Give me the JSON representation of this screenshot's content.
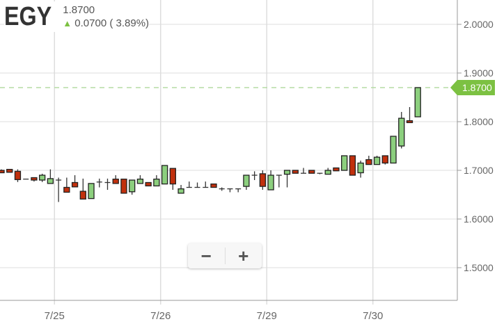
{
  "header": {
    "symbol": "EGY",
    "last": "1.8700",
    "change": "0.0700 ( 3.89%)",
    "direction_icon": "arrow-up-icon"
  },
  "zoom": {
    "minus": "−",
    "plus": "+"
  },
  "colors": {
    "up": "#8ccf7e",
    "down": "#c1300d",
    "last_price": "#7cc142",
    "grid": "#e8e8e8"
  },
  "chart_data": {
    "type": "candlestick",
    "ylim": [
      1.43,
      2.05
    ],
    "y_ticks": [
      "2.0000",
      "1.9000",
      "1.8000",
      "1.7000",
      "1.6000",
      "1.5000"
    ],
    "x_ticks": [
      {
        "label": "7/25",
        "at": 6.5
      },
      {
        "label": "7/26",
        "at": 19.5
      },
      {
        "label": "7/29",
        "at": 32.5
      },
      {
        "label": "7/30",
        "at": 45.5
      }
    ],
    "last_price": 1.87,
    "last_price_label": "1.8700",
    "candles": [
      [
        1.7,
        1.702,
        1.695,
        1.695
      ],
      [
        1.702,
        1.702,
        1.696,
        1.696
      ],
      [
        1.698,
        1.702,
        1.676,
        1.681
      ],
      [
        1.682,
        1.682,
        1.682,
        1.682
      ],
      [
        1.685,
        1.685,
        1.677,
        1.68
      ],
      [
        1.68,
        1.693,
        1.676,
        1.69
      ],
      [
        1.673,
        1.702,
        1.673,
        1.683
      ],
      [
        1.68,
        1.685,
        1.635,
        1.68
      ],
      [
        1.665,
        1.685,
        1.655,
        1.655
      ],
      [
        1.675,
        1.69,
        1.666,
        1.666
      ],
      [
        1.657,
        1.683,
        1.641,
        1.641
      ],
      [
        1.642,
        1.673,
        1.642,
        1.673
      ],
      [
        1.676,
        1.683,
        1.665,
        1.676
      ],
      [
        1.675,
        1.683,
        1.66,
        1.675
      ],
      [
        1.682,
        1.69,
        1.673,
        1.673
      ],
      [
        1.682,
        1.682,
        1.653,
        1.653
      ],
      [
        1.656,
        1.68,
        1.65,
        1.68
      ],
      [
        1.673,
        1.69,
        1.673,
        1.682
      ],
      [
        1.675,
        1.675,
        1.668,
        1.668
      ],
      [
        1.668,
        1.69,
        1.668,
        1.682
      ],
      [
        1.672,
        1.71,
        1.672,
        1.71
      ],
      [
        1.704,
        1.704,
        1.66,
        1.672
      ],
      [
        1.653,
        1.67,
        1.653,
        1.662
      ],
      [
        1.665,
        1.677,
        1.665,
        1.665
      ],
      [
        1.665,
        1.675,
        1.665,
        1.665
      ],
      [
        1.665,
        1.677,
        1.665,
        1.665
      ],
      [
        1.672,
        1.672,
        1.665,
        1.665
      ],
      [
        1.662,
        1.665,
        1.658,
        1.662
      ],
      [
        1.662,
        1.662,
        1.655,
        1.662
      ],
      [
        1.662,
        1.662,
        1.655,
        1.662
      ],
      [
        1.667,
        1.69,
        1.66,
        1.69
      ],
      [
        1.69,
        1.698,
        1.68,
        1.69
      ],
      [
        1.693,
        1.7,
        1.66,
        1.667
      ],
      [
        1.66,
        1.7,
        1.66,
        1.69
      ],
      [
        1.69,
        1.69,
        1.665,
        1.69
      ],
      [
        1.692,
        1.7,
        1.665,
        1.7
      ],
      [
        1.7,
        1.7,
        1.694,
        1.694
      ],
      [
        1.694,
        1.705,
        1.694,
        1.694
      ],
      [
        1.7,
        1.7,
        1.694,
        1.694
      ],
      [
        1.694,
        1.694,
        1.692,
        1.694
      ],
      [
        1.692,
        1.705,
        1.692,
        1.7
      ],
      [
        1.705,
        1.705,
        1.699,
        1.699
      ],
      [
        1.7,
        1.73,
        1.7,
        1.73
      ],
      [
        1.73,
        1.73,
        1.69,
        1.69
      ],
      [
        1.695,
        1.72,
        1.685,
        1.715
      ],
      [
        1.722,
        1.73,
        1.712,
        1.712
      ],
      [
        1.712,
        1.73,
        1.712,
        1.727
      ],
      [
        1.73,
        1.73,
        1.712,
        1.715
      ],
      [
        1.715,
        1.77,
        1.715,
        1.77
      ],
      [
        1.75,
        1.82,
        1.745,
        1.807
      ],
      [
        1.802,
        1.83,
        1.798,
        1.798
      ],
      [
        1.81,
        1.87,
        1.81,
        1.87
      ]
    ]
  }
}
